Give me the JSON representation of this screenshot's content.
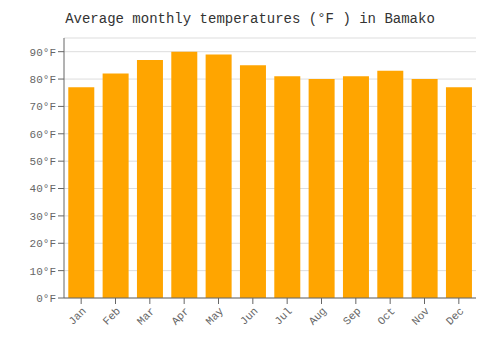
{
  "chart_data": {
    "type": "bar",
    "title": "Average monthly temperatures (°F ) in Bamako",
    "categories": [
      "Jan",
      "Feb",
      "Mar",
      "Apr",
      "May",
      "Jun",
      "Jul",
      "Aug",
      "Sep",
      "Oct",
      "Nov",
      "Dec"
    ],
    "values": [
      77,
      82,
      87,
      90,
      89,
      85,
      81,
      80,
      81,
      83,
      80,
      77
    ],
    "color": "#FFA500",
    "ylim": [
      0,
      95
    ],
    "yticks": [
      {
        "value": 0,
        "label": "0°F"
      },
      {
        "value": 10,
        "label": "10°F"
      },
      {
        "value": 20,
        "label": "20°F"
      },
      {
        "value": 30,
        "label": "30°F"
      },
      {
        "value": 40,
        "label": "40°F"
      },
      {
        "value": 50,
        "label": "50°F"
      },
      {
        "value": 60,
        "label": "60°F"
      },
      {
        "value": 70,
        "label": "70°F"
      },
      {
        "value": 80,
        "label": "80°F"
      },
      {
        "value": 90,
        "label": "90°F"
      }
    ],
    "grid": true
  }
}
